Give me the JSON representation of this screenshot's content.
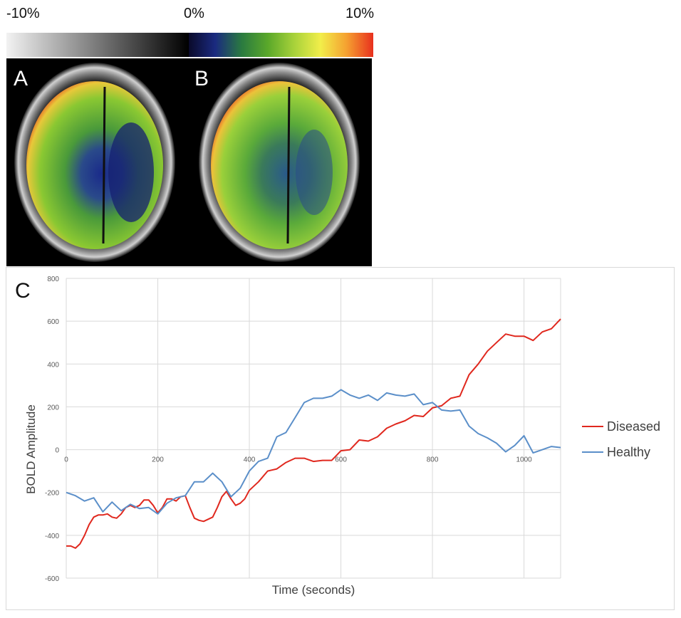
{
  "colorbar": {
    "labels": [
      "-10%",
      "0%",
      "10%"
    ],
    "gray_stops": [
      "#f2f2f2",
      "#000000"
    ],
    "color_stops": [
      "#0a0a2a",
      "#1a2a80",
      "#2a7a40",
      "#5aa82a",
      "#a8d23a",
      "#f2ee4a",
      "#f5a030",
      "#e8301e"
    ]
  },
  "panels": {
    "a_label": "A",
    "b_label": "B",
    "c_label": "C"
  },
  "chart_data": {
    "type": "line",
    "xlabel": "Time (seconds)",
    "ylabel": "BOLD Amplitude",
    "xlim": [
      0,
      1080
    ],
    "ylim": [
      -600,
      800
    ],
    "xticks": [
      0,
      200,
      400,
      600,
      800,
      1000
    ],
    "yticks": [
      -600,
      -400,
      -200,
      0,
      200,
      400,
      600,
      800
    ],
    "grid": true,
    "legend_position": "right",
    "series": [
      {
        "name": "Diseased",
        "color": "#e0281e",
        "x": [
          0,
          10,
          20,
          30,
          40,
          50,
          60,
          70,
          80,
          90,
          100,
          110,
          120,
          130,
          140,
          150,
          160,
          170,
          180,
          190,
          200,
          210,
          220,
          230,
          240,
          250,
          260,
          270,
          280,
          290,
          300,
          310,
          320,
          330,
          340,
          350,
          360,
          370,
          380,
          390,
          400,
          420,
          440,
          460,
          480,
          500,
          520,
          540,
          560,
          580,
          600,
          620,
          640,
          660,
          680,
          700,
          720,
          740,
          760,
          780,
          800,
          820,
          840,
          860,
          880,
          900,
          920,
          940,
          960,
          980,
          1000,
          1020,
          1040,
          1060,
          1080
        ],
        "y": [
          -450,
          -450,
          -460,
          -440,
          -400,
          -350,
          -315,
          -305,
          -305,
          -300,
          -315,
          -320,
          -300,
          -270,
          -260,
          -270,
          -260,
          -235,
          -235,
          -260,
          -295,
          -270,
          -230,
          -230,
          -240,
          -220,
          -215,
          -270,
          -320,
          -330,
          -335,
          -325,
          -315,
          -270,
          -220,
          -195,
          -230,
          -260,
          -250,
          -230,
          -190,
          -150,
          -100,
          -90,
          -60,
          -40,
          -40,
          -55,
          -50,
          -50,
          -5,
          0,
          45,
          40,
          60,
          100,
          120,
          135,
          160,
          155,
          195,
          205,
          240,
          250,
          350,
          400,
          460,
          500,
          540,
          530,
          530,
          510,
          550,
          565,
          610
        ]
      },
      {
        "name": "Healthy",
        "color": "#5b8fc9",
        "x": [
          0,
          20,
          40,
          60,
          80,
          100,
          120,
          140,
          160,
          180,
          200,
          220,
          240,
          260,
          280,
          300,
          320,
          340,
          360,
          380,
          400,
          420,
          440,
          460,
          480,
          500,
          520,
          540,
          560,
          580,
          600,
          620,
          640,
          660,
          680,
          700,
          720,
          740,
          760,
          780,
          800,
          820,
          840,
          860,
          880,
          900,
          920,
          940,
          960,
          980,
          1000,
          1020,
          1040,
          1060,
          1080
        ],
        "y": [
          -200,
          -215,
          -240,
          -225,
          -290,
          -245,
          -285,
          -255,
          -275,
          -270,
          -300,
          -250,
          -225,
          -215,
          -150,
          -150,
          -110,
          -150,
          -220,
          -180,
          -100,
          -55,
          -40,
          60,
          80,
          150,
          220,
          240,
          240,
          250,
          280,
          255,
          240,
          255,
          230,
          265,
          255,
          250,
          260,
          210,
          220,
          185,
          180,
          185,
          110,
          75,
          55,
          30,
          -10,
          20,
          65,
          -15,
          0,
          15,
          10
        ]
      }
    ]
  }
}
